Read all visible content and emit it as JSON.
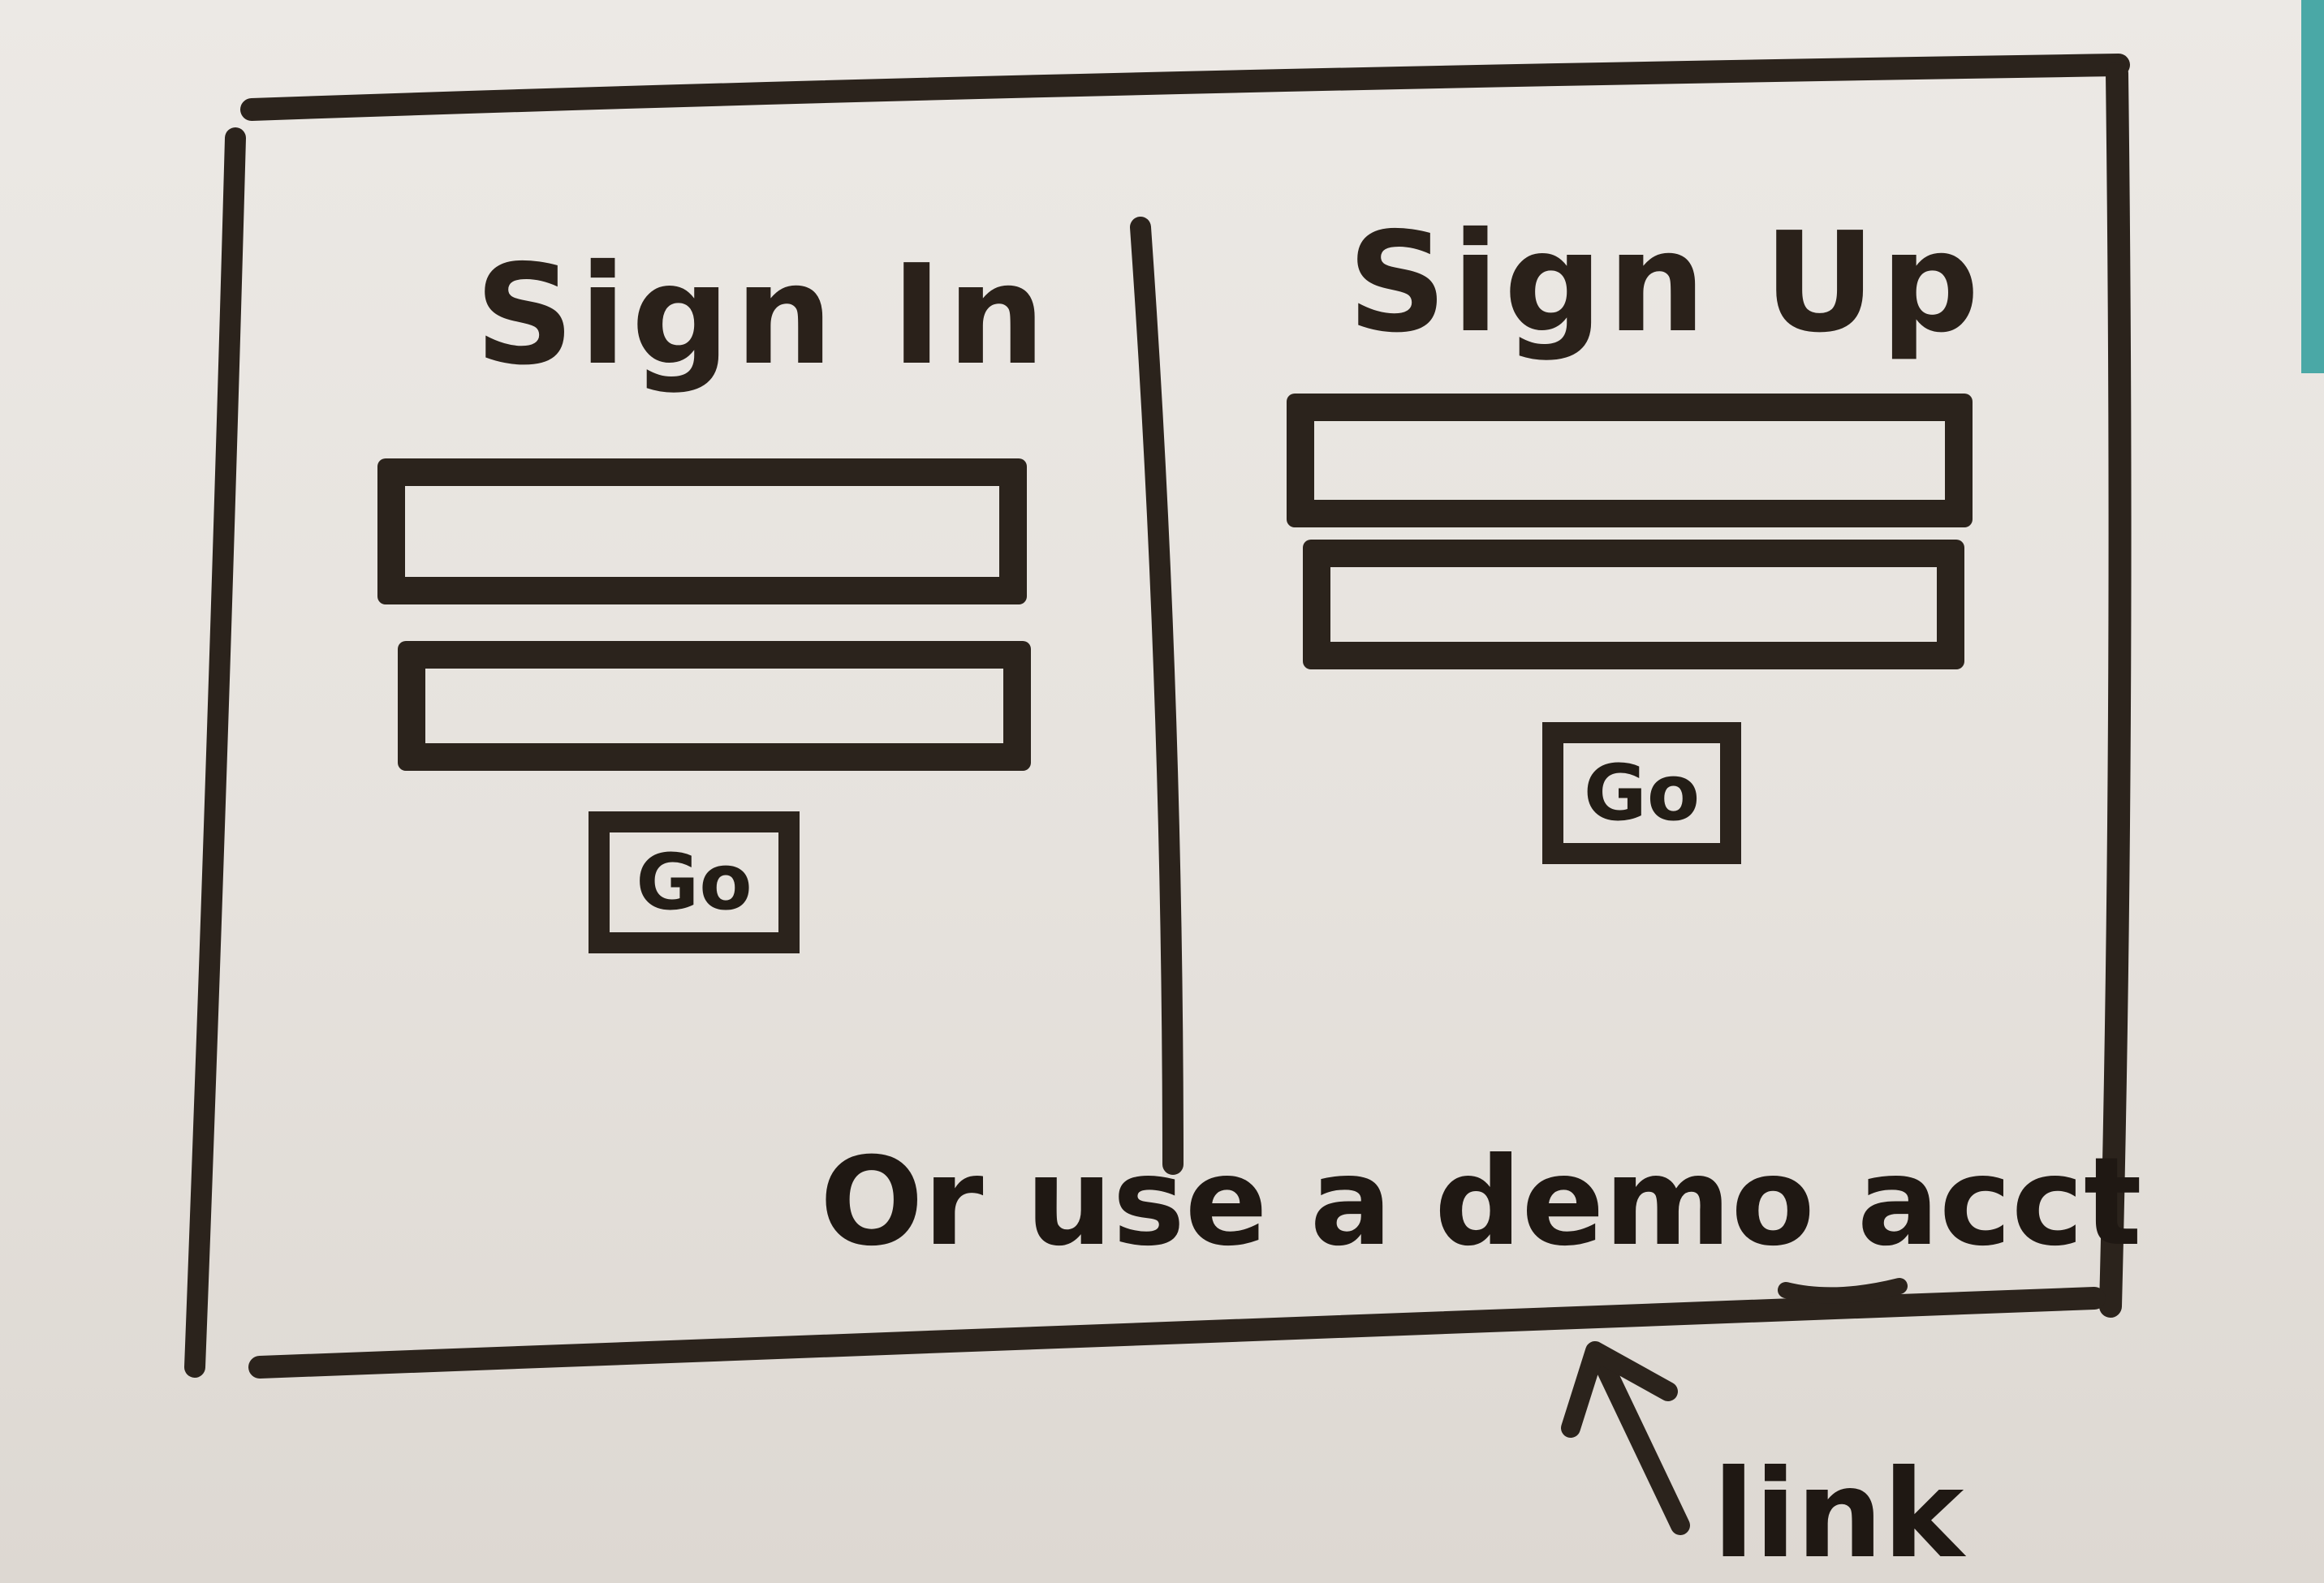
{
  "sign_in": {
    "heading": "Sign In",
    "button_label": "Go"
  },
  "sign_up": {
    "heading": "Sign Up",
    "button_label": "Go"
  },
  "footer": {
    "prefix": "Or use a ",
    "link_text": "demo acct"
  },
  "annotation": {
    "label": "link",
    "arrow_icon": "arrow-up-icon"
  },
  "colors": {
    "ink": "#2b231c",
    "paper": "#e9e5e1",
    "edge": "#4aa8a6"
  }
}
